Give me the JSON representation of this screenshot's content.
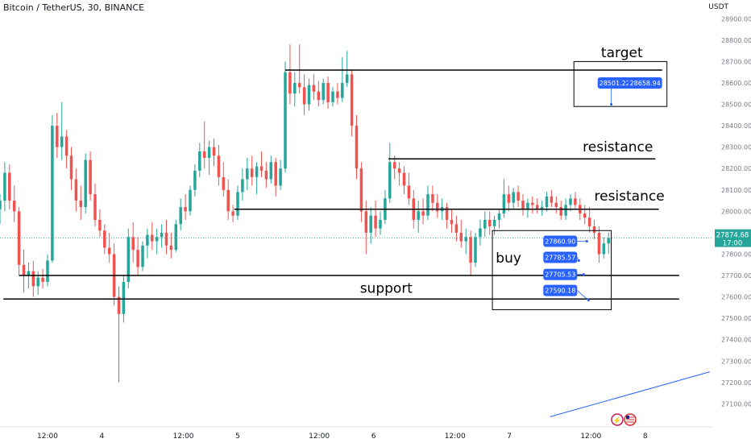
{
  "header": {
    "title": "Bitcoin / TetherUS, 30, BINANCE",
    "unit": "USDT"
  },
  "current_price": {
    "value": "27874.68",
    "countdown": "17:00"
  },
  "colors": {
    "up": "#26a69a",
    "down": "#ef5350",
    "label": "#2962ff",
    "text": "#131722",
    "grid_text": "#787b86"
  },
  "icons": [
    "flash-icon",
    "us-flag-icon"
  ],
  "chart_data": {
    "type": "candlestick",
    "y_axis": {
      "ylim": [
        27000,
        28950
      ],
      "ticks": [
        27100,
        27200,
        27300,
        27400,
        27500,
        27600,
        27700,
        27800,
        27900,
        28000,
        28100,
        28200,
        28300,
        28400,
        28500,
        28600,
        28700,
        28800,
        28900
      ],
      "tick_labels": [
        "27100.00",
        "27200.00",
        "27300.00",
        "27400.00",
        "27500.00",
        "27600.00",
        "27700.00",
        "27800.00",
        "27900.00",
        "28000.00",
        "28100.00",
        "28200.00",
        "28300.00",
        "28400.00",
        "28500.00",
        "28600.00",
        "28700.00",
        "28800.00",
        "28900.00"
      ]
    },
    "x_axis": {
      "tick_labels": [
        "12:00",
        "4",
        "12:00",
        "5",
        "12:00",
        "6",
        "12:00",
        "7",
        "12:00",
        "8"
      ],
      "tick_positions": [
        0.7,
        1.5,
        2.7,
        3.5,
        4.7,
        5.5,
        6.7,
        7.5,
        8.7,
        9.5
      ]
    },
    "series": [
      {
        "x": 0.0,
        "o": 28010,
        "h": 28080,
        "l": 27940,
        "c": 28050
      },
      {
        "x": 0.07,
        "o": 28050,
        "h": 28230,
        "l": 28000,
        "c": 28180
      },
      {
        "x": 0.14,
        "o": 28180,
        "h": 28220,
        "l": 28010,
        "c": 28050
      },
      {
        "x": 0.21,
        "o": 28050,
        "h": 28120,
        "l": 27950,
        "c": 28000
      },
      {
        "x": 0.28,
        "o": 28000,
        "h": 28020,
        "l": 27700,
        "c": 27750
      },
      {
        "x": 0.35,
        "o": 27750,
        "h": 27820,
        "l": 27620,
        "c": 27700
      },
      {
        "x": 0.42,
        "o": 27700,
        "h": 27760,
        "l": 27640,
        "c": 27720
      },
      {
        "x": 0.49,
        "o": 27720,
        "h": 27770,
        "l": 27600,
        "c": 27650
      },
      {
        "x": 0.56,
        "o": 27650,
        "h": 27720,
        "l": 27610,
        "c": 27690
      },
      {
        "x": 0.63,
        "o": 27690,
        "h": 27730,
        "l": 27640,
        "c": 27670
      },
      {
        "x": 0.7,
        "o": 27670,
        "h": 27800,
        "l": 27650,
        "c": 27770
      },
      {
        "x": 0.77,
        "o": 27770,
        "h": 28450,
        "l": 27760,
        "c": 28400
      },
      {
        "x": 0.84,
        "o": 28400,
        "h": 28460,
        "l": 28250,
        "c": 28300
      },
      {
        "x": 0.91,
        "o": 28300,
        "h": 28510,
        "l": 28240,
        "c": 28350
      },
      {
        "x": 0.98,
        "o": 28350,
        "h": 28380,
        "l": 28200,
        "c": 28260
      },
      {
        "x": 1.05,
        "o": 28260,
        "h": 28300,
        "l": 28100,
        "c": 28150
      },
      {
        "x": 1.12,
        "o": 28150,
        "h": 28200,
        "l": 28000,
        "c": 28050
      },
      {
        "x": 1.19,
        "o": 28050,
        "h": 28120,
        "l": 27960,
        "c": 28020
      },
      {
        "x": 1.26,
        "o": 28020,
        "h": 28270,
        "l": 27990,
        "c": 28240
      },
      {
        "x": 1.33,
        "o": 28240,
        "h": 28280,
        "l": 28050,
        "c": 28080
      },
      {
        "x": 1.4,
        "o": 28080,
        "h": 28130,
        "l": 27930,
        "c": 27960
      },
      {
        "x": 1.47,
        "o": 27960,
        "h": 28010,
        "l": 27880,
        "c": 27910
      },
      {
        "x": 1.54,
        "o": 27910,
        "h": 27940,
        "l": 27800,
        "c": 27830
      },
      {
        "x": 1.61,
        "o": 27830,
        "h": 27900,
        "l": 27760,
        "c": 27800
      },
      {
        "x": 1.68,
        "o": 27800,
        "h": 27850,
        "l": 27560,
        "c": 27600
      },
      {
        "x": 1.75,
        "o": 27600,
        "h": 27650,
        "l": 27200,
        "c": 27520
      },
      {
        "x": 1.82,
        "o": 27520,
        "h": 27700,
        "l": 27480,
        "c": 27670
      },
      {
        "x": 1.89,
        "o": 27670,
        "h": 27920,
        "l": 27640,
        "c": 27880
      },
      {
        "x": 1.96,
        "o": 27880,
        "h": 27950,
        "l": 27760,
        "c": 27820
      },
      {
        "x": 2.03,
        "o": 27820,
        "h": 27880,
        "l": 27700,
        "c": 27740
      },
      {
        "x": 2.1,
        "o": 27740,
        "h": 27860,
        "l": 27720,
        "c": 27840
      },
      {
        "x": 2.17,
        "o": 27840,
        "h": 27920,
        "l": 27780,
        "c": 27890
      },
      {
        "x": 2.24,
        "o": 27890,
        "h": 27950,
        "l": 27820,
        "c": 27860
      },
      {
        "x": 2.31,
        "o": 27860,
        "h": 27920,
        "l": 27800,
        "c": 27880
      },
      {
        "x": 2.38,
        "o": 27880,
        "h": 27940,
        "l": 27830,
        "c": 27900
      },
      {
        "x": 2.45,
        "o": 27900,
        "h": 27960,
        "l": 27800,
        "c": 27840
      },
      {
        "x": 2.52,
        "o": 27840,
        "h": 27900,
        "l": 27780,
        "c": 27820
      },
      {
        "x": 2.59,
        "o": 27820,
        "h": 27960,
        "l": 27810,
        "c": 27940
      },
      {
        "x": 2.66,
        "o": 27940,
        "h": 28060,
        "l": 27910,
        "c": 28020
      },
      {
        "x": 2.73,
        "o": 28020,
        "h": 28080,
        "l": 27960,
        "c": 28000
      },
      {
        "x": 2.8,
        "o": 28000,
        "h": 28120,
        "l": 27980,
        "c": 28100
      },
      {
        "x": 2.87,
        "o": 28100,
        "h": 28220,
        "l": 28070,
        "c": 28190
      },
      {
        "x": 2.94,
        "o": 28190,
        "h": 28320,
        "l": 28160,
        "c": 28280
      },
      {
        "x": 3.01,
        "o": 28280,
        "h": 28420,
        "l": 28200,
        "c": 28250
      },
      {
        "x": 3.08,
        "o": 28250,
        "h": 28330,
        "l": 28170,
        "c": 28300
      },
      {
        "x": 3.15,
        "o": 28300,
        "h": 28340,
        "l": 28210,
        "c": 28260
      },
      {
        "x": 3.22,
        "o": 28260,
        "h": 28310,
        "l": 28120,
        "c": 28160
      },
      {
        "x": 3.29,
        "o": 28160,
        "h": 28230,
        "l": 28070,
        "c": 28100
      },
      {
        "x": 3.36,
        "o": 28100,
        "h": 28150,
        "l": 27960,
        "c": 28000
      },
      {
        "x": 3.43,
        "o": 28000,
        "h": 28030,
        "l": 27950,
        "c": 27980
      },
      {
        "x": 3.5,
        "o": 27980,
        "h": 28120,
        "l": 27960,
        "c": 28090
      },
      {
        "x": 3.57,
        "o": 28090,
        "h": 28200,
        "l": 28050,
        "c": 28150
      },
      {
        "x": 3.64,
        "o": 28150,
        "h": 28250,
        "l": 28100,
        "c": 28200
      },
      {
        "x": 3.71,
        "o": 28200,
        "h": 28260,
        "l": 28120,
        "c": 28160
      },
      {
        "x": 3.78,
        "o": 28160,
        "h": 28230,
        "l": 28080,
        "c": 28210
      },
      {
        "x": 3.85,
        "o": 28210,
        "h": 28280,
        "l": 28160,
        "c": 28190
      },
      {
        "x": 3.92,
        "o": 28190,
        "h": 28230,
        "l": 28110,
        "c": 28150
      },
      {
        "x": 3.99,
        "o": 28150,
        "h": 28260,
        "l": 28130,
        "c": 28230
      },
      {
        "x": 4.06,
        "o": 28230,
        "h": 28250,
        "l": 28070,
        "c": 28120
      },
      {
        "x": 4.13,
        "o": 28120,
        "h": 28240,
        "l": 28100,
        "c": 28200
      },
      {
        "x": 4.2,
        "o": 28200,
        "h": 28700,
        "l": 28180,
        "c": 28650
      },
      {
        "x": 4.27,
        "o": 28650,
        "h": 28780,
        "l": 28500,
        "c": 28550
      },
      {
        "x": 4.34,
        "o": 28550,
        "h": 28650,
        "l": 28490,
        "c": 28600
      },
      {
        "x": 4.41,
        "o": 28600,
        "h": 28780,
        "l": 28550,
        "c": 28580
      },
      {
        "x": 4.48,
        "o": 28580,
        "h": 28640,
        "l": 28450,
        "c": 28500
      },
      {
        "x": 4.55,
        "o": 28500,
        "h": 28620,
        "l": 28470,
        "c": 28590
      },
      {
        "x": 4.62,
        "o": 28590,
        "h": 28640,
        "l": 28520,
        "c": 28560
      },
      {
        "x": 4.69,
        "o": 28560,
        "h": 28610,
        "l": 28490,
        "c": 28520
      },
      {
        "x": 4.76,
        "o": 28520,
        "h": 28620,
        "l": 28500,
        "c": 28600
      },
      {
        "x": 4.83,
        "o": 28600,
        "h": 28630,
        "l": 28480,
        "c": 28510
      },
      {
        "x": 4.9,
        "o": 28510,
        "h": 28580,
        "l": 28490,
        "c": 28560
      },
      {
        "x": 4.97,
        "o": 28560,
        "h": 28600,
        "l": 28500,
        "c": 28530
      },
      {
        "x": 5.04,
        "o": 28530,
        "h": 28720,
        "l": 28510,
        "c": 28600
      },
      {
        "x": 5.11,
        "o": 28600,
        "h": 28750,
        "l": 28580,
        "c": 28640
      },
      {
        "x": 5.18,
        "o": 28640,
        "h": 28660,
        "l": 28350,
        "c": 28400
      },
      {
        "x": 5.25,
        "o": 28400,
        "h": 28450,
        "l": 28150,
        "c": 28200
      },
      {
        "x": 5.32,
        "o": 28200,
        "h": 28230,
        "l": 27950,
        "c": 28000
      },
      {
        "x": 5.39,
        "o": 28000,
        "h": 28050,
        "l": 27800,
        "c": 27900
      },
      {
        "x": 5.46,
        "o": 27900,
        "h": 28020,
        "l": 27850,
        "c": 27980
      },
      {
        "x": 5.53,
        "o": 27980,
        "h": 28050,
        "l": 27880,
        "c": 27920
      },
      {
        "x": 5.6,
        "o": 27920,
        "h": 28000,
        "l": 27890,
        "c": 27960
      },
      {
        "x": 5.67,
        "o": 27960,
        "h": 28100,
        "l": 27940,
        "c": 28060
      },
      {
        "x": 5.74,
        "o": 28060,
        "h": 28320,
        "l": 28040,
        "c": 28230
      },
      {
        "x": 5.81,
        "o": 28230,
        "h": 28260,
        "l": 28150,
        "c": 28200
      },
      {
        "x": 5.88,
        "o": 28200,
        "h": 28230,
        "l": 28120,
        "c": 28180
      },
      {
        "x": 5.95,
        "o": 28180,
        "h": 28210,
        "l": 28080,
        "c": 28120
      },
      {
        "x": 6.02,
        "o": 28120,
        "h": 28180,
        "l": 28030,
        "c": 28060
      },
      {
        "x": 6.09,
        "o": 28060,
        "h": 28100,
        "l": 27920,
        "c": 27960
      },
      {
        "x": 6.16,
        "o": 27960,
        "h": 28050,
        "l": 27900,
        "c": 28000
      },
      {
        "x": 6.23,
        "o": 28000,
        "h": 28060,
        "l": 27940,
        "c": 27980
      },
      {
        "x": 6.3,
        "o": 27980,
        "h": 28120,
        "l": 27960,
        "c": 28080
      },
      {
        "x": 6.37,
        "o": 28080,
        "h": 28120,
        "l": 28000,
        "c": 28040
      },
      {
        "x": 6.44,
        "o": 28040,
        "h": 28080,
        "l": 27970,
        "c": 28000
      },
      {
        "x": 6.51,
        "o": 28000,
        "h": 28060,
        "l": 27960,
        "c": 28020
      },
      {
        "x": 6.58,
        "o": 28020,
        "h": 28040,
        "l": 27920,
        "c": 27960
      },
      {
        "x": 6.65,
        "o": 27960,
        "h": 28010,
        "l": 27900,
        "c": 27940
      },
      {
        "x": 6.72,
        "o": 27940,
        "h": 27980,
        "l": 27860,
        "c": 27900
      },
      {
        "x": 6.79,
        "o": 27900,
        "h": 27960,
        "l": 27830,
        "c": 27860
      },
      {
        "x": 6.86,
        "o": 27860,
        "h": 27920,
        "l": 27800,
        "c": 27880
      },
      {
        "x": 6.93,
        "o": 27880,
        "h": 27910,
        "l": 27700,
        "c": 27760
      },
      {
        "x": 7.0,
        "o": 27760,
        "h": 27900,
        "l": 27740,
        "c": 27880
      },
      {
        "x": 7.07,
        "o": 27880,
        "h": 27960,
        "l": 27840,
        "c": 27920
      },
      {
        "x": 7.14,
        "o": 27920,
        "h": 28000,
        "l": 27880,
        "c": 27960
      },
      {
        "x": 7.21,
        "o": 27960,
        "h": 28000,
        "l": 27890,
        "c": 27930
      },
      {
        "x": 7.28,
        "o": 27930,
        "h": 27980,
        "l": 27890,
        "c": 27960
      },
      {
        "x": 7.35,
        "o": 27960,
        "h": 28010,
        "l": 27920,
        "c": 27990
      },
      {
        "x": 7.42,
        "o": 27990,
        "h": 28150,
        "l": 27970,
        "c": 28080
      },
      {
        "x": 7.49,
        "o": 28080,
        "h": 28120,
        "l": 28000,
        "c": 28040
      },
      {
        "x": 7.56,
        "o": 28040,
        "h": 28110,
        "l": 28010,
        "c": 28090
      },
      {
        "x": 7.63,
        "o": 28090,
        "h": 28120,
        "l": 28020,
        "c": 28050
      },
      {
        "x": 7.7,
        "o": 28050,
        "h": 28080,
        "l": 27980,
        "c": 28010
      },
      {
        "x": 7.77,
        "o": 28010,
        "h": 28060,
        "l": 27970,
        "c": 28040
      },
      {
        "x": 7.84,
        "o": 28040,
        "h": 28070,
        "l": 27990,
        "c": 28030
      },
      {
        "x": 7.91,
        "o": 28030,
        "h": 28060,
        "l": 27990,
        "c": 28010
      },
      {
        "x": 7.98,
        "o": 28010,
        "h": 28050,
        "l": 27980,
        "c": 28020
      },
      {
        "x": 8.05,
        "o": 28020,
        "h": 28090,
        "l": 28000,
        "c": 28070
      },
      {
        "x": 8.12,
        "o": 28070,
        "h": 28100,
        "l": 28020,
        "c": 28040
      },
      {
        "x": 8.19,
        "o": 28040,
        "h": 28070,
        "l": 27990,
        "c": 28020
      },
      {
        "x": 8.26,
        "o": 28020,
        "h": 28050,
        "l": 27960,
        "c": 27980
      },
      {
        "x": 8.33,
        "o": 27980,
        "h": 28060,
        "l": 27960,
        "c": 28030
      },
      {
        "x": 8.4,
        "o": 28030,
        "h": 28080,
        "l": 28000,
        "c": 28060
      },
      {
        "x": 8.47,
        "o": 28060,
        "h": 28090,
        "l": 28010,
        "c": 28030
      },
      {
        "x": 8.54,
        "o": 28030,
        "h": 28060,
        "l": 27960,
        "c": 27990
      },
      {
        "x": 8.61,
        "o": 27990,
        "h": 28030,
        "l": 27940,
        "c": 27970
      },
      {
        "x": 8.68,
        "o": 27970,
        "h": 28020,
        "l": 27900,
        "c": 27930
      },
      {
        "x": 8.75,
        "o": 27930,
        "h": 27960,
        "l": 27870,
        "c": 27900
      },
      {
        "x": 8.82,
        "o": 27900,
        "h": 27930,
        "l": 27760,
        "c": 27800
      },
      {
        "x": 8.89,
        "o": 27800,
        "h": 27880,
        "l": 27780,
        "c": 27850
      },
      {
        "x": 8.96,
        "o": 27850,
        "h": 27900,
        "l": 27800,
        "c": 27874.68
      }
    ],
    "annotations": [
      {
        "type": "hline",
        "label": "support",
        "y": 27700,
        "x0": 0.28,
        "x1": 10.0
      },
      {
        "type": "hline",
        "label": "",
        "y": 27590,
        "x0": 0.05,
        "x1": 10.0
      },
      {
        "type": "hline",
        "label": "resistance",
        "y": 28010,
        "x0": 3.45,
        "x1": 9.7
      },
      {
        "type": "hline",
        "label": "resistance",
        "y": 28245,
        "x0": 5.72,
        "x1": 9.65
      },
      {
        "type": "hline",
        "label": "target",
        "y": 28660,
        "x0": 4.2,
        "x1": 9.75
      }
    ],
    "text_labels": [
      {
        "text": "target",
        "y": 28720,
        "x": 8.85
      },
      {
        "text": "resistance",
        "y": 28280,
        "x": 8.58
      },
      {
        "text": "resistance",
        "y": 28050,
        "x": 8.75
      },
      {
        "text": "support",
        "y": 27620,
        "x": 5.3
      },
      {
        "text": "buy",
        "y": 27760,
        "x": 7.3
      }
    ],
    "price_labels": [
      {
        "value": "28501.22",
        "x": 8.8,
        "y": 28600
      },
      {
        "value": "28658.94",
        "x": 9.25,
        "y": 28600
      },
      {
        "value": "27860.90",
        "x": 8.0,
        "y": 27860
      },
      {
        "value": "27785.57",
        "x": 8.0,
        "y": 27785
      },
      {
        "value": "27705.53",
        "x": 8.0,
        "y": 27705
      },
      {
        "value": "27590.18",
        "x": 8.0,
        "y": 27630
      }
    ],
    "boxes": [
      {
        "name": "target",
        "x0": 8.45,
        "x1": 9.82,
        "y0": 28490,
        "y1": 28700
      },
      {
        "name": "buy",
        "x0": 7.25,
        "x1": 9.0,
        "y0": 27540,
        "y1": 27910
      }
    ],
    "current_price_line": 27874.68,
    "trend_line": {
      "x0": 8.1,
      "y0": 27040,
      "x1": 10.45,
      "y1": 27250
    }
  }
}
